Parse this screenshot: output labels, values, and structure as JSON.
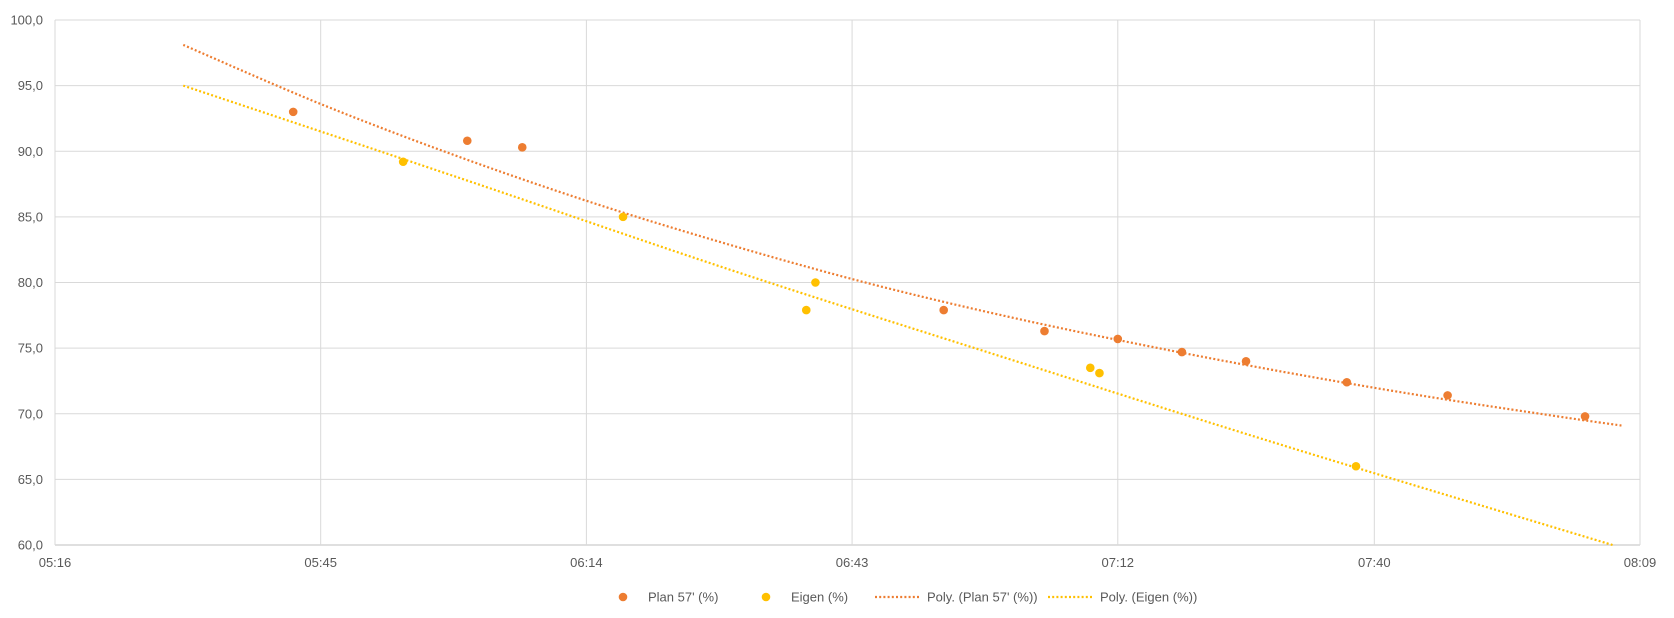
{
  "chart_data": {
    "type": "scatter",
    "title": "",
    "xlabel": "",
    "ylabel": "",
    "x_ticks": [
      "05:16",
      "05:45",
      "06:14",
      "06:43",
      "07:12",
      "07:40",
      "08:09"
    ],
    "y_ticks": [
      "60,0",
      "65,0",
      "70,0",
      "75,0",
      "80,0",
      "85,0",
      "90,0",
      "95,0",
      "100,0"
    ],
    "xlim": [
      "05:16",
      "08:09"
    ],
    "ylim": [
      60,
      100
    ],
    "grid": true,
    "legend_position": "bottom",
    "series": [
      {
        "name": "Plan 57' (%)",
        "kind": "points",
        "color": "#ED7D31",
        "points": [
          {
            "x": "05:42",
            "y": 93.0
          },
          {
            "x": "06:01",
            "y": 90.8
          },
          {
            "x": "06:07",
            "y": 90.3
          },
          {
            "x": "06:53",
            "y": 77.9
          },
          {
            "x": "07:04",
            "y": 76.3
          },
          {
            "x": "07:12",
            "y": 75.7
          },
          {
            "x": "07:19",
            "y": 74.7
          },
          {
            "x": "07:26",
            "y": 74.0
          },
          {
            "x": "07:37",
            "y": 72.4
          },
          {
            "x": "07:48",
            "y": 71.4
          },
          {
            "x": "08:03",
            "y": 69.8
          }
        ]
      },
      {
        "name": "Eigen (%)",
        "kind": "points",
        "color": "#FFC000",
        "points": [
          {
            "x": "05:54",
            "y": 89.2
          },
          {
            "x": "06:18",
            "y": 85.0
          },
          {
            "x": "06:38",
            "y": 77.9
          },
          {
            "x": "06:39",
            "y": 80.0
          },
          {
            "x": "07:09",
            "y": 73.5
          },
          {
            "x": "07:10",
            "y": 73.1
          },
          {
            "x": "07:38",
            "y": 66.0
          }
        ]
      },
      {
        "name": "Poly. (Plan 57' (%))",
        "kind": "trend",
        "color": "#ED7D31",
        "points": [
          {
            "x": "05:30",
            "y": 98.1
          },
          {
            "x": "05:45",
            "y": 93.6
          },
          {
            "x": "06:00",
            "y": 89.6
          },
          {
            "x": "06:15",
            "y": 86.0
          },
          {
            "x": "06:30",
            "y": 82.8
          },
          {
            "x": "06:45",
            "y": 79.9
          },
          {
            "x": "07:00",
            "y": 77.4
          },
          {
            "x": "07:15",
            "y": 75.2
          },
          {
            "x": "07:30",
            "y": 73.2
          },
          {
            "x": "07:45",
            "y": 71.4
          },
          {
            "x": "08:00",
            "y": 69.8
          },
          {
            "x": "08:07",
            "y": 69.1
          }
        ]
      },
      {
        "name": "Poly. (Eigen (%))",
        "kind": "trend",
        "color": "#FFC000",
        "points": [
          {
            "x": "05:30",
            "y": 95.0
          },
          {
            "x": "06:00",
            "y": 88.0
          },
          {
            "x": "06:30",
            "y": 80.9
          },
          {
            "x": "07:00",
            "y": 74.2
          },
          {
            "x": "07:30",
            "y": 67.6
          },
          {
            "x": "08:06",
            "y": 60.0
          }
        ]
      }
    ]
  }
}
